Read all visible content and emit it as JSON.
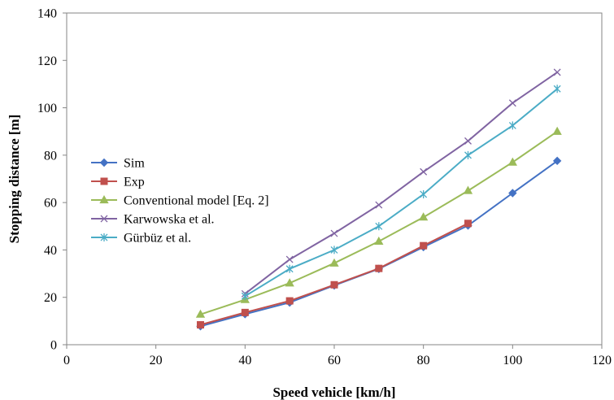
{
  "chart_data": {
    "type": "line",
    "title": "",
    "xlabel": "Speed vehicle [km/h]",
    "ylabel": "Stopping distance [m]",
    "xlim": [
      0,
      120
    ],
    "ylim": [
      0,
      140
    ],
    "xticks": [
      "0",
      "20",
      "40",
      "60",
      "80",
      "100",
      "120"
    ],
    "yticks": [
      "0",
      "20",
      "40",
      "60",
      "80",
      "100",
      "120",
      "140"
    ],
    "grid": false,
    "legend_position": "left-middle",
    "series": [
      {
        "name": "Sim",
        "color": "#4472C4",
        "marker": "diamond",
        "x": [
          30,
          40,
          50,
          60,
          70,
          80,
          90,
          100,
          110
        ],
        "y": [
          7.8,
          12.9,
          17.8,
          25.0,
          32.0,
          41.2,
          50.3,
          64.0,
          77.6
        ]
      },
      {
        "name": "Exp",
        "color": "#C0504D",
        "marker": "square",
        "x": [
          30,
          40,
          50,
          60,
          70,
          80,
          90
        ],
        "y": [
          8.4,
          13.6,
          18.5,
          25.3,
          32.2,
          41.8,
          51.2
        ]
      },
      {
        "name": "Conventional model [Eq. 2]",
        "color": "#9BBB59",
        "marker": "triangle",
        "x": [
          30,
          40,
          50,
          60,
          70,
          80,
          90,
          100,
          110
        ],
        "y": [
          12.8,
          19.0,
          26.0,
          34.4,
          43.6,
          53.8,
          65.0,
          77.0,
          90.0
        ]
      },
      {
        "name": "Karwowska et al.",
        "color": "#8064A2",
        "marker": "x",
        "x": [
          40,
          50,
          60,
          70,
          80,
          90,
          100,
          110
        ],
        "y": [
          21.5,
          36.0,
          47.0,
          59.0,
          73.0,
          86.0,
          102.0,
          115.0
        ]
      },
      {
        "name": "Gürbüz et al.",
        "color": "#4BACC6",
        "marker": "star",
        "x": [
          40,
          50,
          60,
          70,
          80,
          90,
          100,
          110
        ],
        "y": [
          20.5,
          32.0,
          40.0,
          50.0,
          63.5,
          80.0,
          92.5,
          108.0
        ]
      }
    ]
  }
}
